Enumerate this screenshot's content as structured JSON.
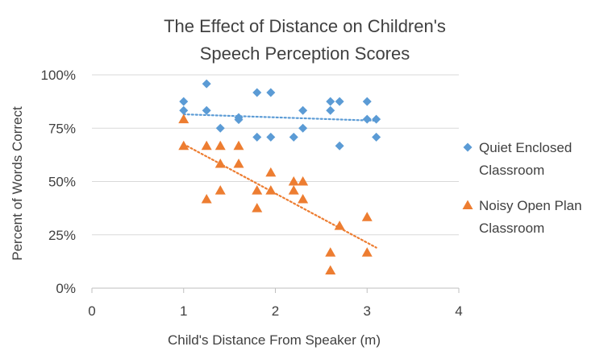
{
  "chart_data": {
    "type": "scatter",
    "title_lines": [
      "The Effect of Distance on Children's",
      "Speech Perception Scores"
    ],
    "xlabel": "Child's Distance From Speaker (m)",
    "ylabel": "Percent of Words Correct",
    "xlim": [
      0,
      4
    ],
    "ylim": [
      0,
      1
    ],
    "x_ticks": [
      0,
      1,
      2,
      3,
      4
    ],
    "y_ticks": [
      0,
      0.25,
      0.5,
      0.75,
      1.0
    ],
    "x_tick_labels": [
      "0",
      "1",
      "2",
      "3",
      "4"
    ],
    "y_tick_labels": [
      "0%",
      "25%",
      "50%",
      "75%",
      "100%"
    ],
    "grid": "horizontal",
    "legend_position": "right",
    "series": [
      {
        "name": "Quiet Enclosed Classroom",
        "legend_lines": [
          "Quiet Enclosed",
          "Classroom"
        ],
        "marker": "diamond",
        "color": "#5B9BD5",
        "points": [
          [
            1.0,
            0.875
          ],
          [
            1.0,
            0.833
          ],
          [
            1.25,
            0.958
          ],
          [
            1.25,
            0.833
          ],
          [
            1.4,
            0.75
          ],
          [
            1.6,
            0.8
          ],
          [
            1.6,
            0.79
          ],
          [
            1.8,
            0.917
          ],
          [
            1.8,
            0.708
          ],
          [
            1.95,
            0.917
          ],
          [
            1.95,
            0.708
          ],
          [
            2.2,
            0.708
          ],
          [
            2.3,
            0.833
          ],
          [
            2.3,
            0.75
          ],
          [
            2.6,
            0.875
          ],
          [
            2.6,
            0.833
          ],
          [
            2.7,
            0.875
          ],
          [
            2.7,
            0.667
          ],
          [
            3.0,
            0.875
          ],
          [
            3.0,
            0.792
          ],
          [
            3.1,
            0.792
          ],
          [
            3.1,
            0.708
          ]
        ],
        "trendline": [
          [
            1.0,
            0.815
          ],
          [
            3.1,
            0.785
          ]
        ]
      },
      {
        "name": "Noisy Open Plan Classroom",
        "legend_lines": [
          "Noisy Open Plan",
          "Classroom"
        ],
        "marker": "triangle",
        "color": "#ED7D31",
        "points": [
          [
            1.0,
            0.792
          ],
          [
            1.0,
            0.667
          ],
          [
            1.25,
            0.667
          ],
          [
            1.25,
            0.417
          ],
          [
            1.4,
            0.667
          ],
          [
            1.4,
            0.583
          ],
          [
            1.4,
            0.458
          ],
          [
            1.6,
            0.667
          ],
          [
            1.6,
            0.583
          ],
          [
            1.8,
            0.458
          ],
          [
            1.8,
            0.375
          ],
          [
            1.95,
            0.542
          ],
          [
            1.95,
            0.458
          ],
          [
            2.2,
            0.5
          ],
          [
            2.2,
            0.458
          ],
          [
            2.3,
            0.5
          ],
          [
            2.3,
            0.417
          ],
          [
            2.6,
            0.167
          ],
          [
            2.6,
            0.083
          ],
          [
            2.7,
            0.292
          ],
          [
            3.0,
            0.333
          ],
          [
            3.0,
            0.167
          ]
        ],
        "trendline": [
          [
            1.0,
            0.675
          ],
          [
            3.1,
            0.19
          ]
        ]
      }
    ]
  }
}
